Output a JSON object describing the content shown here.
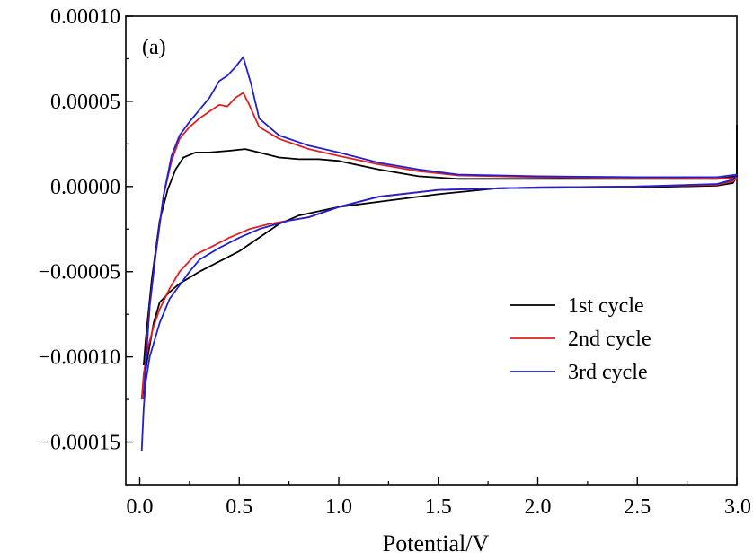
{
  "chart_data": {
    "type": "line",
    "title": "",
    "panel_label": "(a)",
    "xlabel": "Potential/V",
    "ylabel": "",
    "xlim": [
      -0.07,
      3.0
    ],
    "ylim": [
      -0.000175,
      0.0001
    ],
    "x_ticks": [
      0.0,
      0.5,
      1.0,
      1.5,
      2.0,
      2.5,
      3.0
    ],
    "x_tick_labels": [
      "0.0",
      "0.5",
      "1.0",
      "1.5",
      "2.0",
      "2.5",
      "3.0"
    ],
    "y_ticks": [
      -0.00015,
      -0.0001,
      -5e-05,
      0.0,
      5e-05,
      0.0001
    ],
    "y_tick_labels": [
      "-0.00015",
      "-0.00010",
      "-0.00005",
      "0.00000",
      "0.00005",
      "0.00010"
    ],
    "grid": false,
    "legend_position": "lower-right",
    "series": [
      {
        "name": "1st cycle",
        "color": "#000000",
        "points": [
          [
            0.01,
            -0.000125
          ],
          [
            0.02,
            -0.000115
          ],
          [
            0.04,
            -0.0001
          ],
          [
            0.07,
            -8e-05
          ],
          [
            0.1,
            -6.8e-05
          ],
          [
            0.15,
            -6.2e-05
          ],
          [
            0.2,
            -5.7e-05
          ],
          [
            0.3,
            -5e-05
          ],
          [
            0.4,
            -4.4e-05
          ],
          [
            0.5,
            -3.8e-05
          ],
          [
            0.6,
            -3e-05
          ],
          [
            0.7,
            -2.2e-05
          ],
          [
            0.8,
            -1.7e-05
          ],
          [
            1.0,
            -1.2e-05
          ],
          [
            1.2,
            -9e-06
          ],
          [
            1.5,
            -4.5e-06
          ],
          [
            1.8,
            -1e-06
          ],
          [
            2.0,
            -8e-07
          ],
          [
            2.5,
            -5e-07
          ],
          [
            2.9,
            5e-07
          ],
          [
            2.98,
            2e-06
          ],
          [
            3.0,
            6e-06
          ],
          [
            3.0,
            3.6e-05
          ],
          [
            3.0,
            6e-06
          ],
          [
            2.9,
            4.5e-06
          ],
          [
            2.5,
            4.5e-06
          ],
          [
            2.0,
            4.5e-06
          ],
          [
            1.6,
            4.5e-06
          ],
          [
            1.4,
            6e-06
          ],
          [
            1.2,
            1e-05
          ],
          [
            1.0,
            1.5e-05
          ],
          [
            0.9,
            1.6e-05
          ],
          [
            0.8,
            1.6e-05
          ],
          [
            0.7,
            1.7e-05
          ],
          [
            0.6,
            2e-05
          ],
          [
            0.53,
            2.2e-05
          ],
          [
            0.45,
            2.1e-05
          ],
          [
            0.35,
            2e-05
          ],
          [
            0.28,
            2e-05
          ],
          [
            0.22,
            1.7e-05
          ],
          [
            0.18,
            1e-05
          ],
          [
            0.14,
            -2e-06
          ],
          [
            0.1,
            -2e-05
          ],
          [
            0.06,
            -5.5e-05
          ],
          [
            0.03,
            -9e-05
          ],
          [
            0.02,
            -0.000105
          ]
        ]
      },
      {
        "name": "2nd cycle",
        "color": "#e02020",
        "points": [
          [
            0.01,
            -0.000125
          ],
          [
            0.02,
            -0.00011
          ],
          [
            0.04,
            -9.5e-05
          ],
          [
            0.07,
            -8.2e-05
          ],
          [
            0.1,
            -7.2e-05
          ],
          [
            0.15,
            -6e-05
          ],
          [
            0.2,
            -5e-05
          ],
          [
            0.28,
            -4e-05
          ],
          [
            0.35,
            -3.6e-05
          ],
          [
            0.45,
            -3e-05
          ],
          [
            0.55,
            -2.5e-05
          ],
          [
            0.65,
            -2.2e-05
          ],
          [
            0.75,
            -2e-05
          ],
          [
            0.85,
            -1.8e-05
          ],
          [
            1.0,
            -1.2e-05
          ],
          [
            1.2,
            -6e-06
          ],
          [
            1.5,
            -2e-06
          ],
          [
            2.0,
            -5e-07
          ],
          [
            2.5,
            0.0
          ],
          [
            2.9,
            1e-06
          ],
          [
            2.98,
            3e-06
          ],
          [
            3.0,
            5e-06
          ],
          [
            2.9,
            4.5e-06
          ],
          [
            2.5,
            5e-06
          ],
          [
            2.0,
            5.5e-06
          ],
          [
            1.6,
            6.5e-06
          ],
          [
            1.4,
            9e-06
          ],
          [
            1.2,
            1.3e-05
          ],
          [
            1.0,
            1.8e-05
          ],
          [
            0.85,
            2.2e-05
          ],
          [
            0.7,
            2.8e-05
          ],
          [
            0.6,
            3.5e-05
          ],
          [
            0.55,
            4.8e-05
          ],
          [
            0.52,
            5.5e-05
          ],
          [
            0.48,
            5.2e-05
          ],
          [
            0.44,
            4.7e-05
          ],
          [
            0.4,
            4.8e-05
          ],
          [
            0.35,
            4.4e-05
          ],
          [
            0.3,
            4e-05
          ],
          [
            0.25,
            3.5e-05
          ],
          [
            0.2,
            2.8e-05
          ],
          [
            0.16,
            1.5e-05
          ],
          [
            0.12,
            -5e-06
          ],
          [
            0.08,
            -4e-05
          ],
          [
            0.05,
            -7e-05
          ],
          [
            0.03,
            -0.0001
          ],
          [
            0.02,
            -0.00012
          ]
        ]
      },
      {
        "name": "3rd cycle",
        "color": "#2020d0",
        "points": [
          [
            0.01,
            -0.000155
          ],
          [
            0.02,
            -0.00013
          ],
          [
            0.03,
            -0.000115
          ],
          [
            0.05,
            -0.0001
          ],
          [
            0.1,
            -8e-05
          ],
          [
            0.15,
            -6.6e-05
          ],
          [
            0.2,
            -5.8e-05
          ],
          [
            0.25,
            -5e-05
          ],
          [
            0.3,
            -4.3e-05
          ],
          [
            0.4,
            -3.6e-05
          ],
          [
            0.5,
            -3e-05
          ],
          [
            0.6,
            -2.5e-05
          ],
          [
            0.75,
            -2e-05
          ],
          [
            0.85,
            -1.8e-05
          ],
          [
            1.0,
            -1.2e-05
          ],
          [
            1.2,
            -6e-06
          ],
          [
            1.5,
            -2e-06
          ],
          [
            2.0,
            -5e-07
          ],
          [
            2.5,
            0.0
          ],
          [
            2.9,
            1.5e-06
          ],
          [
            2.98,
            4e-06
          ],
          [
            3.0,
            7e-06
          ],
          [
            2.9,
            5.5e-06
          ],
          [
            2.5,
            5.5e-06
          ],
          [
            2.0,
            6e-06
          ],
          [
            1.6,
            7e-06
          ],
          [
            1.4,
            1e-05
          ],
          [
            1.2,
            1.4e-05
          ],
          [
            1.0,
            2e-05
          ],
          [
            0.85,
            2.4e-05
          ],
          [
            0.7,
            3e-05
          ],
          [
            0.6,
            4e-05
          ],
          [
            0.56,
            6e-05
          ],
          [
            0.52,
            7.6e-05
          ],
          [
            0.48,
            7e-05
          ],
          [
            0.44,
            6.5e-05
          ],
          [
            0.4,
            6.2e-05
          ],
          [
            0.35,
            5.2e-05
          ],
          [
            0.3,
            4.5e-05
          ],
          [
            0.25,
            3.8e-05
          ],
          [
            0.2,
            3e-05
          ],
          [
            0.16,
            1.8e-05
          ],
          [
            0.12,
            -5e-06
          ],
          [
            0.08,
            -4e-05
          ],
          [
            0.05,
            -7e-05
          ],
          [
            0.03,
            -0.000105
          ],
          [
            0.02,
            -0.000125
          ]
        ]
      }
    ]
  }
}
